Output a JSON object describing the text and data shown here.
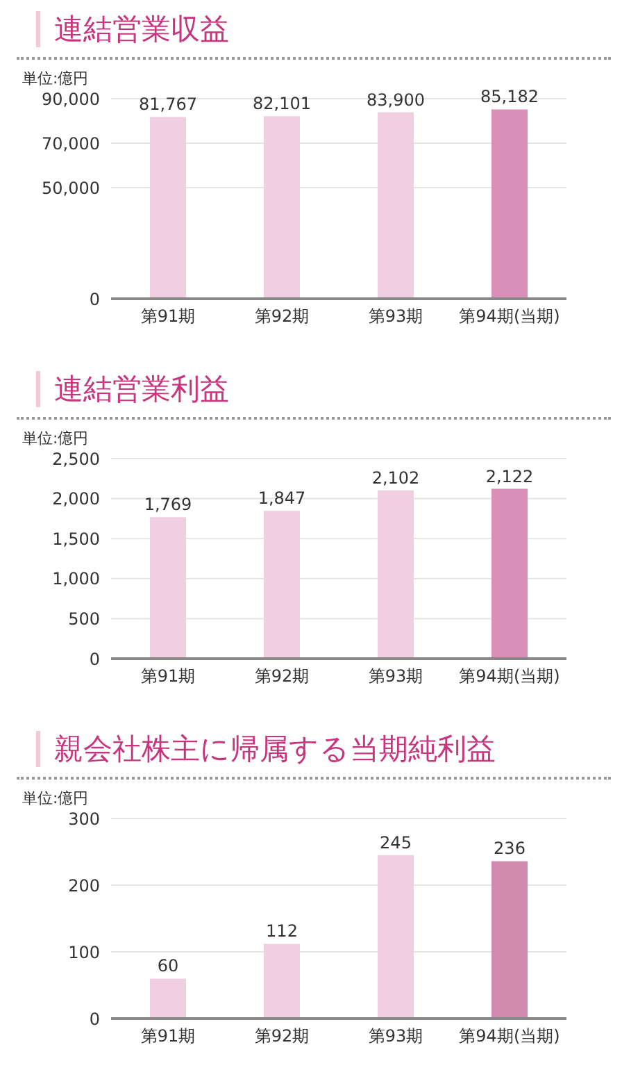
{
  "chart_data": [
    {
      "type": "bar",
      "title": "連結営業収益",
      "ylabel": "単位:億円",
      "categories": [
        "第91期",
        "第92期",
        "第93期",
        "第94期(当期)"
      ],
      "values": [
        81767,
        82101,
        83900,
        85182
      ],
      "value_labels": [
        "81,767",
        "82,101",
        "83,900",
        "85,182"
      ],
      "colors": [
        "#f0cfe0",
        "#f0cfe0",
        "#f0cfe0",
        "#d98fb7"
      ],
      "ylim": [
        0,
        90000
      ],
      "yticks": [
        0,
        {
          "value": 50000,
          "label": "50,000"
        },
        {
          "value": 70000,
          "label": "70,000"
        },
        {
          "value": 90000,
          "label": "90,000"
        }
      ],
      "grid": "y",
      "legend": false
    },
    {
      "type": "bar",
      "title": "連結営業利益",
      "ylabel": "単位:億円",
      "categories": [
        "第91期",
        "第92期",
        "第93期",
        "第94期(当期)"
      ],
      "values": [
        1769,
        1847,
        2102,
        2122
      ],
      "value_labels": [
        "1,769",
        "1,847",
        "2,102",
        "2,122"
      ],
      "colors": [
        "#f0cfe0",
        "#f0cfe0",
        "#f0cfe0",
        "#d98fb7"
      ],
      "ylim": [
        0,
        2500
      ],
      "yticks": [
        0,
        500,
        {
          "value": 1000,
          "label": "1,000"
        },
        {
          "value": 1500,
          "label": "1,500"
        },
        {
          "value": 2000,
          "label": "2,000"
        },
        {
          "value": 2500,
          "label": "2,500"
        }
      ],
      "grid": "y",
      "legend": false
    },
    {
      "type": "bar",
      "title": "親会社株主に帰属する当期純利益",
      "ylabel": "単位:億円",
      "categories": [
        "第91期",
        "第92期",
        "第93期",
        "第94期(当期)"
      ],
      "values": [
        60,
        112,
        245,
        236
      ],
      "colors": [
        "#f0cfe0",
        "#f0cfe0",
        "#f0cfe0",
        "#cf8aae"
      ],
      "ylim": [
        0,
        300
      ],
      "yticks": [
        0,
        100,
        200,
        300
      ],
      "grid": "y",
      "data_labels": true,
      "legend": false
    }
  ]
}
